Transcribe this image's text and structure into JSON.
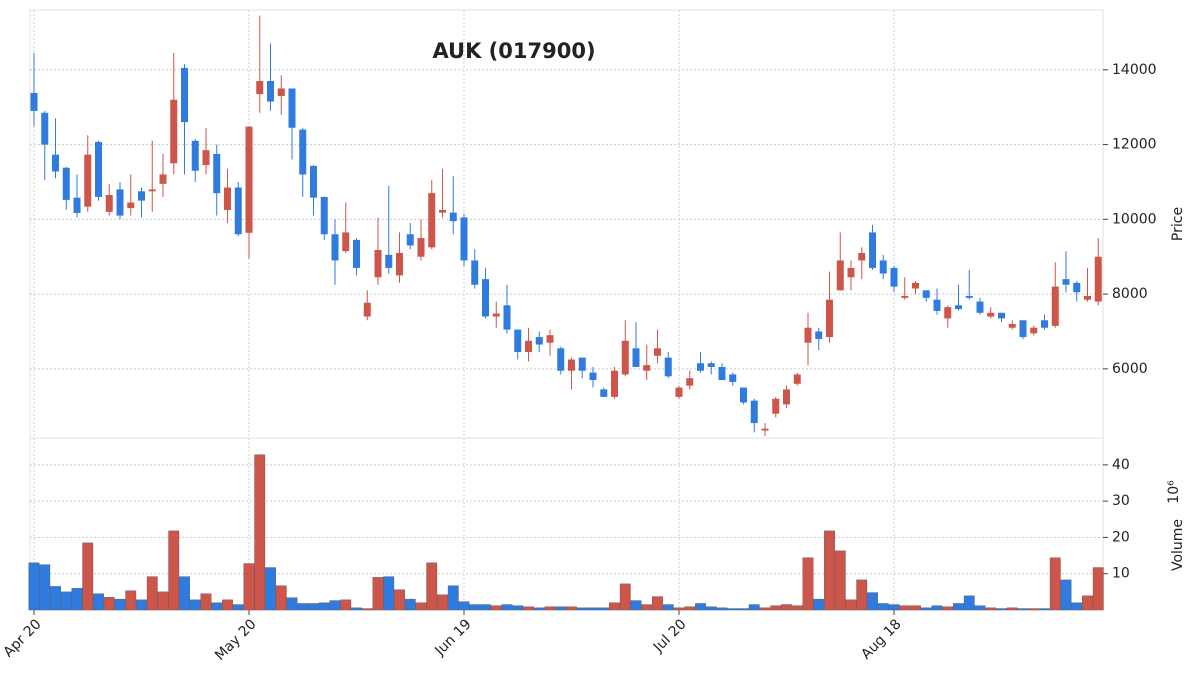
{
  "chart_data": {
    "type": "candlestick",
    "title": "AUK (017900)",
    "categories": [
      "Apr 20",
      null,
      null,
      null,
      null,
      null,
      null,
      null,
      null,
      null,
      null,
      null,
      null,
      null,
      null,
      null,
      null,
      null,
      null,
      null,
      "May 20",
      null,
      null,
      null,
      null,
      null,
      null,
      null,
      null,
      null,
      null,
      null,
      null,
      null,
      null,
      null,
      null,
      null,
      null,
      null,
      "Jun 19",
      null,
      null,
      null,
      null,
      null,
      null,
      null,
      null,
      null,
      null,
      null,
      null,
      null,
      null,
      null,
      null,
      null,
      null,
      null,
      "Jul 20",
      null,
      null,
      null,
      null,
      null,
      null,
      null,
      null,
      null,
      null,
      null,
      null,
      null,
      null,
      null,
      null,
      null,
      null,
      null,
      "Aug 18",
      null,
      null,
      null,
      null,
      null,
      null,
      null,
      null,
      null,
      null,
      null,
      null,
      null,
      null,
      null,
      null,
      null,
      null,
      null
    ],
    "open": [
      13380,
      12850,
      11730,
      11380,
      10580,
      10340,
      12070,
      10200,
      10800,
      10300,
      10750,
      10750,
      10950,
      11500,
      14050,
      12100,
      11450,
      11750,
      10250,
      10850,
      9640,
      13350,
      13700,
      13300,
      13500,
      12400,
      11430,
      10600,
      9600,
      9150,
      9450,
      7400,
      8450,
      9050,
      8500,
      9600,
      9000,
      9250,
      10180,
      10180,
      10050,
      8900,
      8400,
      7400,
      7700,
      7050,
      6450,
      6850,
      6700,
      6550,
      5950,
      6300,
      5900,
      5450,
      5250,
      5850,
      6550,
      5950,
      6350,
      6300,
      5250,
      5550,
      6150,
      6150,
      6050,
      5850,
      5500,
      5150,
      4350,
      4800,
      5050,
      5600,
      6700,
      7000,
      6850,
      8100,
      8450,
      8900,
      9650,
      8900,
      8700,
      7900,
      8150,
      8100,
      7850,
      7350,
      7700,
      7950,
      7800,
      7400,
      7500,
      7100,
      7300,
      6950,
      7300,
      7150,
      8400,
      8300,
      7850,
      7800
    ],
    "high": [
      14450,
      12900,
      12700,
      11400,
      11200,
      12250,
      12100,
      10950,
      11000,
      11200,
      10850,
      12100,
      11750,
      14450,
      14150,
      12150,
      12450,
      12000,
      11350,
      11000,
      12500,
      15450,
      14700,
      13850,
      13500,
      12450,
      11450,
      10600,
      10000,
      10450,
      9500,
      8100,
      10050,
      10900,
      9650,
      9900,
      10000,
      11050,
      11350,
      11150,
      10150,
      9200,
      8700,
      7800,
      8250,
      7050,
      7100,
      7000,
      7050,
      6600,
      6300,
      6300,
      6050,
      5500,
      6050,
      7300,
      7250,
      6650,
      7050,
      6450,
      5550,
      5950,
      6450,
      6200,
      6150,
      5900,
      5500,
      5200,
      4550,
      5250,
      5550,
      5900,
      7500,
      7100,
      8600,
      9650,
      8900,
      9250,
      9850,
      9050,
      8750,
      8450,
      8350,
      8100,
      8150,
      7700,
      8250,
      8650,
      7900,
      7650,
      7500,
      7300,
      7300,
      7150,
      7450,
      8850,
      9150,
      8350,
      8700,
      9500
    ],
    "low": [
      12500,
      11050,
      11100,
      10250,
      10050,
      10200,
      10500,
      10100,
      10000,
      10100,
      10050,
      10200,
      10600,
      11200,
      11200,
      11000,
      11200,
      10100,
      9900,
      9550,
      8950,
      12850,
      12900,
      12800,
      11600,
      10600,
      10100,
      9450,
      8250,
      9100,
      8500,
      7300,
      8250,
      8550,
      8300,
      9200,
      8900,
      9200,
      10050,
      9600,
      8750,
      8150,
      7350,
      7100,
      6950,
      6250,
      6200,
      6450,
      6350,
      5850,
      5450,
      5750,
      5500,
      5250,
      5200,
      5800,
      6050,
      5700,
      6150,
      5750,
      5200,
      5450,
      5900,
      5850,
      5700,
      5550,
      5050,
      4300,
      4200,
      4700,
      4950,
      5550,
      6100,
      6500,
      6700,
      8100,
      8100,
      8400,
      8650,
      8400,
      8050,
      7850,
      8000,
      7800,
      7450,
      7100,
      7550,
      7850,
      7450,
      7350,
      7250,
      7050,
      6800,
      6900,
      7050,
      7100,
      8050,
      7800,
      7800,
      7700
    ],
    "close": [
      12900,
      12000,
      11280,
      10520,
      10170,
      11730,
      10600,
      10650,
      10100,
      10450,
      10500,
      10800,
      11200,
      13200,
      12600,
      11300,
      11850,
      10700,
      10850,
      9600,
      12480,
      13700,
      13150,
      13500,
      12450,
      11200,
      10580,
      9600,
      8900,
      9650,
      8700,
      7770,
      9180,
      8700,
      9100,
      9300,
      9500,
      10700,
      10250,
      9950,
      8900,
      8250,
      7400,
      7480,
      7050,
      6450,
      6750,
      6650,
      6900,
      5950,
      6250,
      5950,
      5700,
      5250,
      5950,
      6750,
      6050,
      6100,
      6550,
      5800,
      5500,
      5750,
      5950,
      6050,
      5700,
      5650,
      5100,
      4550,
      4400,
      5200,
      5450,
      5850,
      7100,
      6800,
      7850,
      8900,
      8700,
      9100,
      8700,
      8550,
      8200,
      7950,
      8300,
      7900,
      7550,
      7650,
      7600,
      7900,
      7500,
      7500,
      7350,
      7200,
      6850,
      7100,
      7100,
      8200,
      8250,
      8050,
      7950,
      9000
    ],
    "volume": [
      13,
      12.5,
      6.5,
      5,
      6,
      18.5,
      4.5,
      3.5,
      3,
      5.3,
      2.8,
      9.2,
      5,
      21.8,
      9.2,
      2.8,
      4.5,
      2,
      2.8,
      1.5,
      12.8,
      42.8,
      11.7,
      6.7,
      3.4,
      1.8,
      1.8,
      2,
      2.6,
      2.8,
      0.6,
      0.4,
      9,
      9.2,
      5.6,
      3,
      2,
      13,
      4.2,
      6.7,
      2.3,
      1.5,
      1.5,
      1.2,
      1.5,
      1.2,
      0.9,
      0.6,
      0.9,
      0.9,
      0.9,
      0.6,
      0.6,
      0.6,
      2,
      7.2,
      2.6,
      1.5,
      3.7,
      1.5,
      0.6,
      0.9,
      1.8,
      0.9,
      0.6,
      0.4,
      0.4,
      1.5,
      0.6,
      1.2,
      1.5,
      1.2,
      14.4,
      3,
      21.8,
      16.3,
      2.8,
      8.3,
      4.8,
      1.8,
      1.5,
      1.2,
      1.2,
      0.6,
      1.2,
      0.9,
      1.8,
      3.9,
      1.2,
      0.6,
      0.4,
      0.6,
      0.4,
      0.4,
      0.4,
      14.4,
      8.3,
      2,
      3.9,
      11.7
    ],
    "up_color": "#cd5549",
    "down_color": "#2f7be0",
    "ylabel": "Price",
    "ylim": [
      4150,
      15600
    ],
    "yticks": [
      6000,
      8000,
      10000,
      12000,
      14000
    ],
    "volume_label": "Volume",
    "volume_scale_label": "10⁶",
    "volume_ylim": [
      0,
      47.4
    ],
    "volume_yticks": [
      10,
      20,
      30,
      40
    ],
    "grid": true
  }
}
